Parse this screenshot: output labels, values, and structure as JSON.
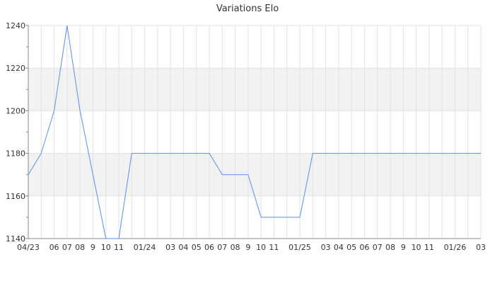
{
  "chart_data": {
    "type": "line",
    "title": "Variations Elo",
    "xlabel": "",
    "ylabel": "",
    "ylim": [
      1140,
      1240
    ],
    "yticks": [
      1140,
      1160,
      1180,
      1200,
      1220,
      1240
    ],
    "grid": true,
    "bands": [
      [
        1160,
        1180
      ],
      [
        1200,
        1220
      ]
    ],
    "x_tick_labels": [
      "04/23",
      "",
      "06",
      "07",
      "08",
      "9",
      "10",
      "11",
      "",
      "01/24",
      "",
      "03",
      "04",
      "05",
      "06",
      "07",
      "08",
      "9",
      "10",
      "11",
      "",
      "01/25",
      "",
      "03",
      "04",
      "05",
      "06",
      "07",
      "08",
      "9",
      "10",
      "11",
      "",
      "01/26",
      "",
      "03"
    ],
    "series": [
      {
        "color": "#5b8def",
        "values": [
          1170,
          1180,
          1200,
          1240,
          1200,
          1170,
          1140,
          1140,
          1180,
          1180,
          1180,
          1180,
          1180,
          1180,
          1180,
          1170,
          1170,
          1170,
          1150,
          1150,
          1150,
          1150,
          1180,
          1180,
          1180,
          1180,
          1180,
          1180,
          1180,
          1180,
          1180,
          1180,
          1180,
          1180,
          1180,
          1180
        ]
      }
    ],
    "colors": {
      "band": "#f2f2f2",
      "grid": "#e2e2e2",
      "axis": "#888888"
    }
  }
}
